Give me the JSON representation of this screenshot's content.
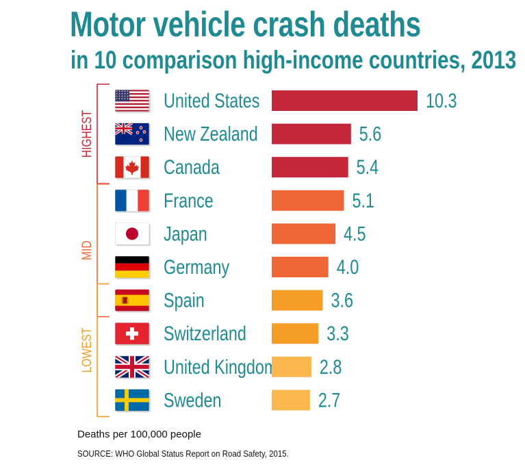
{
  "chart_data": {
    "type": "bar",
    "orientation": "horizontal",
    "title": "Motor vehicle crash deaths",
    "subtitle": "in 10 comparison high-income countries, 2013",
    "categories": [
      "United States",
      "New Zealand",
      "Canada",
      "France",
      "Japan",
      "Germany",
      "Spain",
      "Switzerland",
      "United Kingdom",
      "Sweden"
    ],
    "values": [
      10.3,
      5.6,
      5.4,
      5.1,
      4.5,
      4.0,
      3.6,
      3.3,
      2.8,
      2.7
    ],
    "value_labels": [
      "10.3",
      "5.6",
      "5.4",
      "5.1",
      "4.5",
      "4.0",
      "3.6",
      "3.3",
      "2.8",
      "2.7"
    ],
    "bar_colors": [
      "#c4263a",
      "#c4263a",
      "#c4263a",
      "#ef6535",
      "#ef6535",
      "#ef6535",
      "#f59d26",
      "#f59d26",
      "#fbb84f",
      "#fbb84f"
    ],
    "flag_icons": [
      "us-flag-icon",
      "new-zealand-flag-icon",
      "canada-flag-icon",
      "france-flag-icon",
      "japan-flag-icon",
      "germany-flag-icon",
      "spain-flag-icon",
      "switzerland-flag-icon",
      "united-kingdom-flag-icon",
      "sweden-flag-icon"
    ],
    "groups": [
      {
        "label": "HIGHEST",
        "color": "#c4263a",
        "start": 0,
        "end": 2
      },
      {
        "label": "MID",
        "color": "#ef6535",
        "start": 3,
        "end": 6
      },
      {
        "label": "LOWEST",
        "color": "#f59d26",
        "start": 6,
        "end": 9
      }
    ],
    "xlim": [
      0,
      10.3
    ],
    "grid": false,
    "label_color": "#1f8a92"
  },
  "footnote": "Deaths per 100,000 people",
  "source": "SOURCE: WHO Global Status Report on Road Safety, 2015."
}
